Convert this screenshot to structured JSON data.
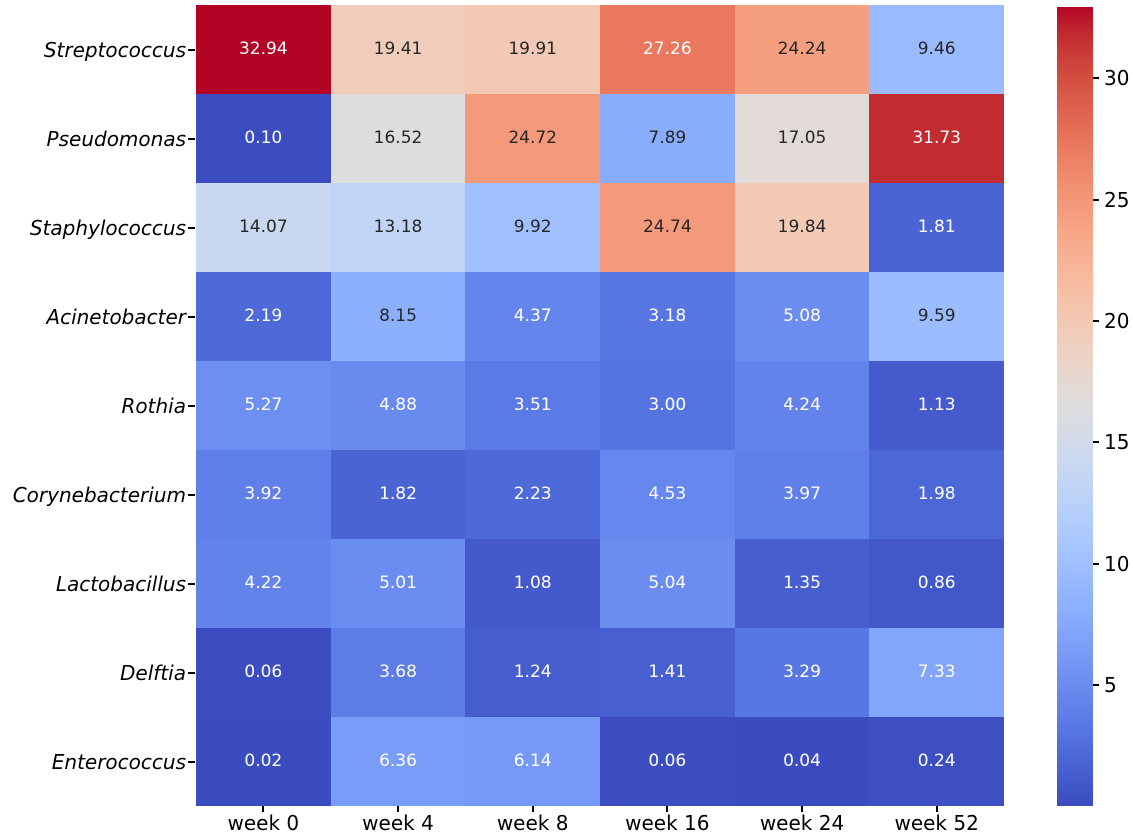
{
  "chart_data": {
    "type": "heatmap",
    "title": "",
    "rows": [
      "Streptococcus",
      "Pseudomonas",
      "Staphylococcus",
      "Acinetobacter",
      "Rothia",
      "Corynebacterium",
      "Lactobacillus",
      "Delftia",
      "Enterococcus"
    ],
    "columns": [
      "week 0",
      "week 4",
      "week 8",
      "week 16",
      "week 24",
      "week 52"
    ],
    "values": [
      [
        32.94,
        19.41,
        19.91,
        27.26,
        24.24,
        9.46
      ],
      [
        0.1,
        16.52,
        24.72,
        7.89,
        17.05,
        31.73
      ],
      [
        14.07,
        13.18,
        9.92,
        24.74,
        19.84,
        1.81
      ],
      [
        2.19,
        8.15,
        4.37,
        3.18,
        5.08,
        9.59
      ],
      [
        5.27,
        4.88,
        3.51,
        3.0,
        4.24,
        1.13
      ],
      [
        3.92,
        1.82,
        2.23,
        4.53,
        3.97,
        1.98
      ],
      [
        4.22,
        5.01,
        1.08,
        5.04,
        1.35,
        0.86
      ],
      [
        0.06,
        3.68,
        1.24,
        1.41,
        3.29,
        7.33
      ],
      [
        0.02,
        6.36,
        6.14,
        0.06,
        0.04,
        0.24
      ]
    ],
    "value_decimals": 2,
    "colormap": "coolwarm",
    "vmin": 0.02,
    "vmax": 32.94,
    "colorbar_ticks": [
      5,
      10,
      15,
      20,
      25,
      30
    ],
    "legend_position": "right",
    "grid": false,
    "colors": {
      "low": "#3b4cc0",
      "mid": "#dddddd",
      "high": "#b40426",
      "annotation_dark": "#262626",
      "annotation_light": "#ffffff",
      "axis_text": "#000000",
      "background": "#ffffff"
    },
    "annotation_white_below": 7.6,
    "annotation_white_above": 26.0
  }
}
